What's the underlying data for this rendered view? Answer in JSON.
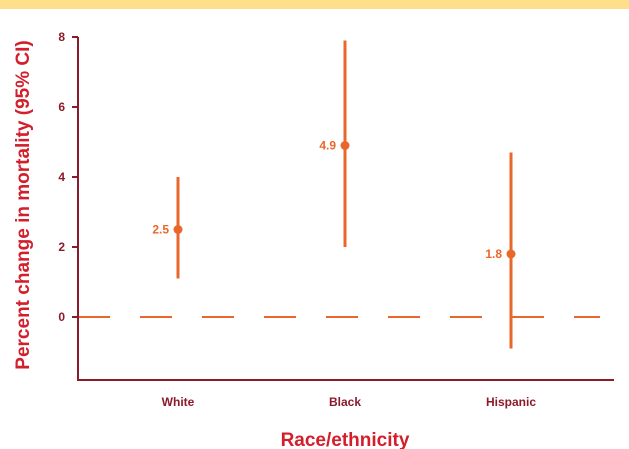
{
  "colors": {
    "band": "#FFE08A",
    "axis": "#8B1A2B",
    "tick_text": "#8B1A2B",
    "title_text": "#D21F2B",
    "series": "#E9672A",
    "reference_line": "#E9672A"
  },
  "chart_data": {
    "type": "scatter",
    "style": "point estimates with 95% confidence interval error bars",
    "xlabel": "Race/ethnicity",
    "ylabel": "Percent change in mortality (95% CI)",
    "categories": [
      "White",
      "Black",
      "Hispanic"
    ],
    "values": [
      2.5,
      4.9,
      1.8
    ],
    "value_labels": [
      "2.5",
      "4.9",
      "1.8"
    ],
    "ci_low": [
      1.1,
      2.0,
      -0.9
    ],
    "ci_high": [
      4.0,
      7.9,
      4.7
    ],
    "ylim": [
      -1.8,
      8
    ],
    "yticks": [
      0,
      2,
      4,
      6,
      8
    ],
    "ytick_labels": [
      "0",
      "2",
      "4",
      "6",
      "8"
    ],
    "reference_line": {
      "y": 0,
      "style": "dashed"
    },
    "grid": false,
    "legend": "none"
  }
}
